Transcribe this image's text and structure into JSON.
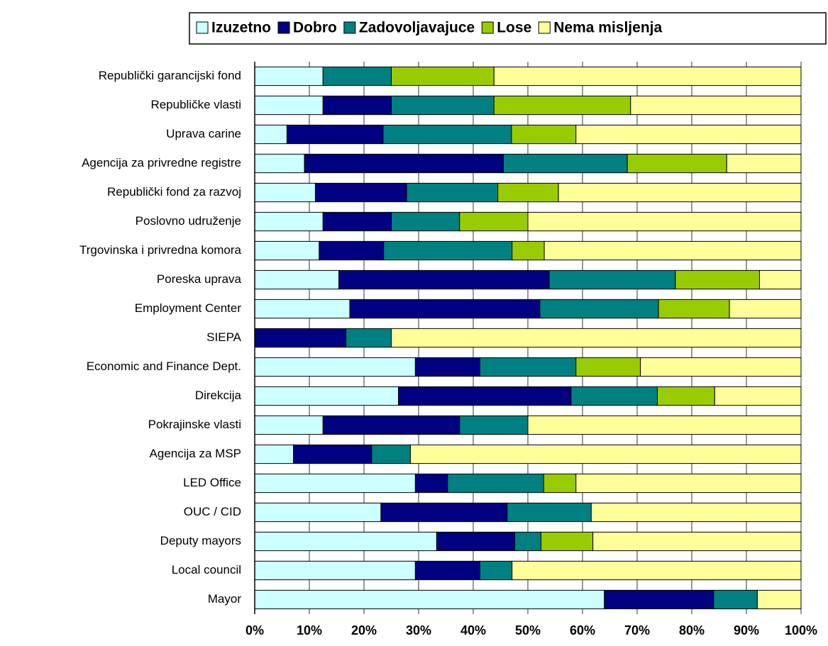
{
  "chart_data": {
    "type": "stacked-bar-horizontal",
    "categories": [
      "Republički garancijski fond",
      "Republičke vlasti",
      "Uprava carine",
      "Agencija za privredne registre",
      "Republički fond za razvoj",
      "Poslovno udruženje",
      "Trgovinska i privredna komora",
      "Poreska uprava",
      "Employment Center",
      "SIEPA",
      "Economic and Finance Dept.",
      "Direkcija",
      "Pokrajinske vlasti",
      "Agencija za MSP",
      "LED Office",
      "OUC / CID",
      "Deputy mayors",
      "Local council",
      "Mayor"
    ],
    "series": [
      {
        "name": "Izuzetno",
        "color": "#ccffff",
        "values": [
          12.5,
          12.5,
          5.9,
          9.1,
          11.1,
          12.5,
          11.8,
          15.4,
          17.4,
          0,
          29.4,
          26.3,
          12.5,
          7.1,
          29.4,
          23.1,
          33.3,
          29.4,
          64
        ]
      },
      {
        "name": "Dobro",
        "color": "#000080",
        "values": [
          0,
          12.5,
          17.6,
          36.4,
          16.7,
          12.5,
          11.8,
          38.5,
          34.8,
          16.7,
          11.8,
          31.6,
          25,
          14.3,
          5.9,
          23.1,
          14.3,
          11.8,
          20
        ]
      },
      {
        "name": "Zadovoljavajuce",
        "color": "#008080",
        "values": [
          12.5,
          18.8,
          23.5,
          22.7,
          16.7,
          12.5,
          23.5,
          23.1,
          21.7,
          8.3,
          17.6,
          15.8,
          12.5,
          7.1,
          17.6,
          15.4,
          4.8,
          5.9,
          8
        ]
      },
      {
        "name": "Lose",
        "color": "#99cc00",
        "values": [
          18.8,
          25,
          11.8,
          18.2,
          11.1,
          12.5,
          5.9,
          15.4,
          13,
          0,
          11.8,
          10.5,
          0,
          0,
          5.9,
          0,
          9.5,
          0,
          0
        ]
      },
      {
        "name": "Nema misljenja",
        "color": "#ffff99",
        "values": [
          56.2,
          31.2,
          41.2,
          13.6,
          44.4,
          50,
          47,
          7.6,
          13.1,
          75,
          29.4,
          15.8,
          50,
          71.5,
          41.2,
          38.4,
          38.1,
          52.9,
          8
        ]
      }
    ],
    "xlim": [
      0,
      100
    ],
    "xticks": [
      {
        "value": 0,
        "label": "0%"
      },
      {
        "value": 10,
        "label": "10%"
      },
      {
        "value": 20,
        "label": "20%"
      },
      {
        "value": 30,
        "label": "30%"
      },
      {
        "value": 40,
        "label": "40%"
      },
      {
        "value": 50,
        "label": "50%"
      },
      {
        "value": 60,
        "label": "60%"
      },
      {
        "value": 70,
        "label": "70%"
      },
      {
        "value": 80,
        "label": "80%"
      },
      {
        "value": 90,
        "label": "90%"
      },
      {
        "value": 100,
        "label": "100%"
      }
    ],
    "grid": true,
    "legend": "top"
  }
}
